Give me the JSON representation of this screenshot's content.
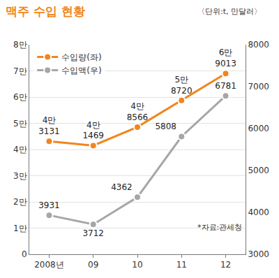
{
  "chart_data": {
    "type": "line",
    "title": "맥주 수입 현황",
    "subtitle": "〈단위:t, 만달러〉",
    "categories": [
      "2008년",
      "09",
      "10",
      "11",
      "12"
    ],
    "series": [
      {
        "name": "수입량(좌)",
        "color": "#f0861e",
        "marker": "circle",
        "values": [
          43131,
          41469,
          48566,
          58720,
          69013
        ],
        "value_labels": [
          "4만 3131",
          "4만 1469",
          "4만 8566",
          "5만 8720",
          "6만 9013"
        ]
      },
      {
        "name": "수입액(우)",
        "color": "#a6a6a6",
        "marker": "circle",
        "axis": "y2",
        "values": [
          3931,
          3712,
          4362,
          5808,
          6781
        ]
      }
    ],
    "ylim": [
      0,
      80000
    ],
    "yticks": [
      0,
      {
        "value": 10000,
        "label": "1만"
      },
      {
        "value": 20000,
        "label": "2만"
      },
      {
        "value": 30000,
        "label": "3만"
      },
      {
        "value": 40000,
        "label": "4만"
      },
      {
        "value": 50000,
        "label": "5만"
      },
      {
        "value": 60000,
        "label": "6만"
      },
      {
        "value": 70000,
        "label": "7만"
      },
      {
        "value": 80000,
        "label": "8만"
      }
    ],
    "y2lim": [
      3000,
      8000
    ],
    "y2ticks": [
      3000,
      4000,
      5000,
      6000,
      7000,
      8000
    ],
    "grid": true,
    "legend": "top left",
    "data_labels": true,
    "annotations": [
      "*자료:관세청"
    ]
  }
}
